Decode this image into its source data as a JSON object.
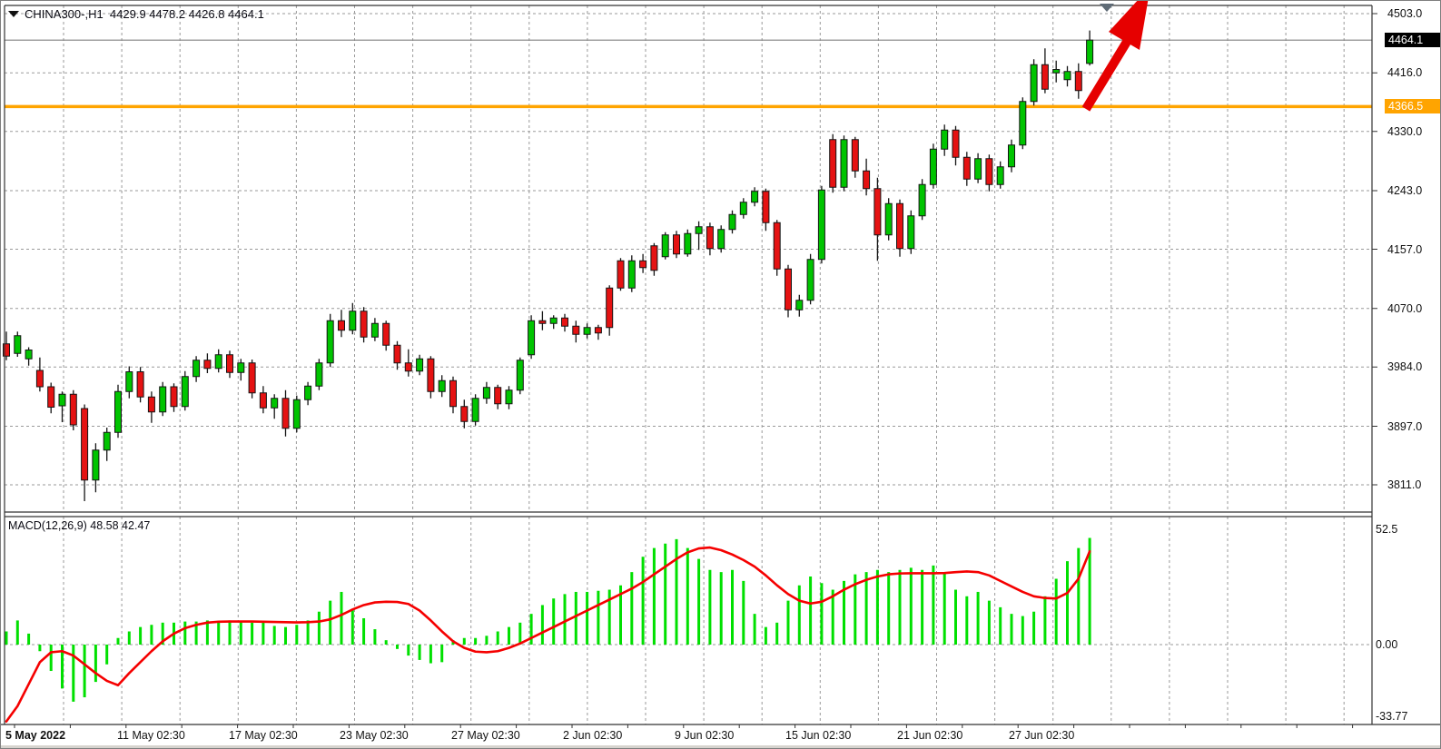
{
  "chart": {
    "title": "CHINA300-,H1  4429.9 4478.2 4426.8 4464.1",
    "symbol": "CHINA300-",
    "period": "H1",
    "last_bar": {
      "open": "4429.9",
      "high": "4478.2",
      "low": "4426.8",
      "close": "4464.1"
    },
    "current_price_badge": "4464.1",
    "hline_badge": "4366.5"
  },
  "macd_panel": {
    "label": "MACD(12,26,9) 48.58 42.47",
    "indicator_name": "MACD",
    "params": "12,26,9",
    "macd_value": "48.58",
    "signal_value": "42.47"
  },
  "colors": {
    "bull": "#00c400",
    "bear": "#e51212",
    "outline": "#151515",
    "hist_green": "#00e000",
    "signal_red": "#f50000",
    "orange_line": "#ffa400",
    "current_price_line": "#808080",
    "grid": "#9a9a9a",
    "frame": "#333333",
    "arrow_red": "#e60000",
    "marker_gray": "#5f6b76"
  },
  "chart_data": {
    "type": "candlestick",
    "title": "CHINA300-,H1",
    "price_ticks": [
      4503.0,
      4416.0,
      4330.0,
      4243.0,
      4157.0,
      4070.0,
      3984.0,
      3897.0,
      3811.0
    ],
    "time_labels": [
      "5 May 2022",
      "11 May 02:30",
      "17 May 02:30",
      "23 May 02:30",
      "27 May 02:30",
      "2 Jun 02:30",
      "9 Jun 02:30",
      "15 Jun 02:30",
      "21 Jun 02:30",
      "27 Jun 02:30"
    ],
    "overlays": {
      "current_price": 4464.1,
      "horizontal_line": 4366.5
    },
    "candles": [
      [
        4018,
        4036,
        3994,
        4000
      ],
      [
        4004,
        4036,
        3999,
        4030
      ],
      [
        3996,
        4013,
        3986,
        4009
      ],
      [
        3979,
        3998,
        3948,
        3955
      ],
      [
        3955,
        3961,
        3916,
        3925
      ],
      [
        3927,
        3948,
        3903,
        3944
      ],
      [
        3944,
        3950,
        3891,
        3899
      ],
      [
        3923,
        3929,
        3787,
        3818
      ],
      [
        3818,
        3872,
        3800,
        3862
      ],
      [
        3862,
        3895,
        3846,
        3888
      ],
      [
        3888,
        3958,
        3880,
        3948
      ],
      [
        3948,
        3985,
        3938,
        3977
      ],
      [
        3977,
        3984,
        3932,
        3940
      ],
      [
        3940,
        3948,
        3902,
        3918
      ],
      [
        3918,
        3962,
        3912,
        3955
      ],
      [
        3955,
        3960,
        3918,
        3926
      ],
      [
        3926,
        3978,
        3920,
        3970
      ],
      [
        3970,
        4000,
        3962,
        3994
      ],
      [
        3994,
        4004,
        3975,
        3982
      ],
      [
        3982,
        4010,
        3976,
        4002
      ],
      [
        4002,
        4008,
        3968,
        3976
      ],
      [
        3976,
        3996,
        3964,
        3990
      ],
      [
        3990,
        3995,
        3938,
        3946
      ],
      [
        3946,
        3956,
        3916,
        3924
      ],
      [
        3924,
        3944,
        3908,
        3938
      ],
      [
        3938,
        3950,
        3882,
        3894
      ],
      [
        3894,
        3942,
        3888,
        3936
      ],
      [
        3936,
        3962,
        3928,
        3956
      ],
      [
        3956,
        3996,
        3950,
        3990
      ],
      [
        3990,
        4062,
        3984,
        4052
      ],
      [
        4052,
        4068,
        4028,
        4038
      ],
      [
        4038,
        4078,
        4032,
        4066
      ],
      [
        4066,
        4072,
        4020,
        4028
      ],
      [
        4028,
        4056,
        4022,
        4048
      ],
      [
        4048,
        4052,
        4008,
        4016
      ],
      [
        4016,
        4022,
        3980,
        3990
      ],
      [
        3990,
        4010,
        3970,
        3978
      ],
      [
        3978,
        4002,
        3972,
        3996
      ],
      [
        3996,
        4000,
        3938,
        3948
      ],
      [
        3948,
        3972,
        3940,
        3964
      ],
      [
        3964,
        3970,
        3916,
        3926
      ],
      [
        3926,
        3936,
        3894,
        3904
      ],
      [
        3904,
        3944,
        3898,
        3938
      ],
      [
        3938,
        3962,
        3930,
        3954
      ],
      [
        3954,
        3958,
        3922,
        3930
      ],
      [
        3930,
        3956,
        3922,
        3950
      ],
      [
        3950,
        3998,
        3944,
        3994
      ],
      [
        4002,
        4060,
        3996,
        4052
      ],
      [
        4052,
        4066,
        4038,
        4048
      ],
      [
        4048,
        4060,
        4040,
        4056
      ],
      [
        4056,
        4062,
        4036,
        4044
      ],
      [
        4044,
        4052,
        4020,
        4032
      ],
      [
        4032,
        4048,
        4026,
        4042
      ],
      [
        4042,
        4046,
        4024,
        4034
      ],
      [
        4100,
        4104,
        4030,
        4042
      ],
      [
        4140,
        4144,
        4096,
        4100
      ],
      [
        4100,
        4148,
        4094,
        4140
      ],
      [
        4140,
        4150,
        4122,
        4130
      ],
      [
        4162,
        4166,
        4118,
        4126
      ],
      [
        4146,
        4182,
        4142,
        4178
      ],
      [
        4178,
        4184,
        4144,
        4150
      ],
      [
        4150,
        4186,
        4146,
        4180
      ],
      [
        4180,
        4198,
        4156,
        4190
      ],
      [
        4190,
        4196,
        4148,
        4158
      ],
      [
        4158,
        4192,
        4152,
        4186
      ],
      [
        4186,
        4214,
        4180,
        4208
      ],
      [
        4208,
        4232,
        4202,
        4226
      ],
      [
        4226,
        4248,
        4220,
        4242
      ],
      [
        4242,
        4246,
        4184,
        4196
      ],
      [
        4196,
        4200,
        4118,
        4128
      ],
      [
        4128,
        4134,
        4057,
        4068
      ],
      [
        4068,
        4090,
        4058,
        4082
      ],
      [
        4082,
        4150,
        4076,
        4142
      ],
      [
        4142,
        4250,
        4136,
        4244
      ],
      [
        4318,
        4326,
        4240,
        4248
      ],
      [
        4248,
        4324,
        4242,
        4318
      ],
      [
        4318,
        4322,
        4262,
        4272
      ],
      [
        4272,
        4290,
        4236,
        4246
      ],
      [
        4246,
        4262,
        4140,
        4178
      ],
      [
        4178,
        4232,
        4170,
        4224
      ],
      [
        4224,
        4230,
        4146,
        4158
      ],
      [
        4158,
        4214,
        4150,
        4206
      ],
      [
        4206,
        4260,
        4200,
        4252
      ],
      [
        4252,
        4312,
        4246,
        4304
      ],
      [
        4304,
        4340,
        4294,
        4332
      ],
      [
        4332,
        4338,
        4280,
        4292
      ],
      [
        4292,
        4300,
        4250,
        4260
      ],
      [
        4260,
        4298,
        4254,
        4290
      ],
      [
        4290,
        4296,
        4242,
        4252
      ],
      [
        4252,
        4286,
        4246,
        4278
      ],
      [
        4278,
        4318,
        4270,
        4310
      ],
      [
        4310,
        4380,
        4304,
        4374
      ],
      [
        4374,
        4436,
        4368,
        4428
      ],
      [
        4428,
        4452,
        4386,
        4392
      ],
      [
        4416,
        4434,
        4402,
        4421
      ],
      [
        4406,
        4426,
        4396,
        4418
      ],
      [
        4418,
        4430,
        4378,
        4390
      ],
      [
        4429.9,
        4478.2,
        4426.8,
        4464.1
      ]
    ],
    "indicator": {
      "type": "macd_histogram_with_signal",
      "name": "MACD(12,26,9)",
      "ticks": [
        52.5,
        0.0,
        -33.77
      ],
      "histogram": [
        6,
        11,
        5,
        -3,
        -12,
        -20,
        -26,
        -24,
        -17,
        -9,
        3,
        6,
        8,
        9,
        10,
        10,
        10.5,
        10.5,
        11,
        10.5,
        11,
        10.5,
        10,
        10,
        8.5,
        8,
        9,
        11,
        15,
        20,
        24,
        16,
        12,
        7,
        2,
        -2,
        -5,
        -7,
        -8.5,
        -8,
        2,
        3,
        3,
        4,
        6,
        8,
        10,
        14,
        18,
        21,
        23,
        24,
        24,
        24.5,
        25,
        27,
        33,
        40,
        44,
        46,
        48,
        44,
        39,
        34,
        33,
        34,
        29,
        14,
        8,
        10,
        20,
        27,
        31,
        28,
        25,
        29,
        32,
        33,
        34,
        33,
        34,
        35,
        34,
        36,
        33,
        25,
        22,
        24,
        20,
        17,
        14,
        13,
        15,
        22,
        30,
        38,
        44,
        48.58
      ],
      "signal": [
        -35,
        -28,
        -18,
        -8,
        -3.5,
        -3,
        -5,
        -9,
        -13,
        -16.5,
        -18.5,
        -13,
        -8,
        -3,
        1.5,
        5,
        7.5,
        9,
        10,
        10.4,
        10.5,
        10.5,
        10.5,
        10.4,
        10.3,
        10.2,
        10.1,
        10.2,
        10.5,
        11.5,
        13.5,
        16,
        18,
        19.2,
        19.5,
        19.4,
        18.5,
        15.5,
        11,
        6,
        1.5,
        -1.5,
        -3.2,
        -3.5,
        -3,
        -1.5,
        0.5,
        3,
        5.5,
        8,
        10.5,
        13,
        15.5,
        18,
        20.5,
        23,
        25.5,
        28.5,
        32,
        35.5,
        39,
        42,
        43.8,
        44.2,
        43,
        41,
        38.5,
        35.5,
        31.5,
        27,
        23,
        20,
        18.7,
        19.5,
        22,
        25,
        27.5,
        29.5,
        31,
        32,
        32.4,
        32.5,
        32.5,
        32.5,
        32.6,
        33,
        33.3,
        33,
        31.5,
        29,
        26.5,
        24,
        22,
        21.2,
        21,
        23.5,
        30,
        42.47
      ]
    },
    "annotations": [
      {
        "type": "up-arrow",
        "color": "#e60000",
        "description": "red trend arrow pointing up-right near last candles"
      },
      {
        "type": "down-triangle-marker",
        "color": "#5f6b76",
        "description": "gray triangle marker at chart top"
      }
    ]
  }
}
